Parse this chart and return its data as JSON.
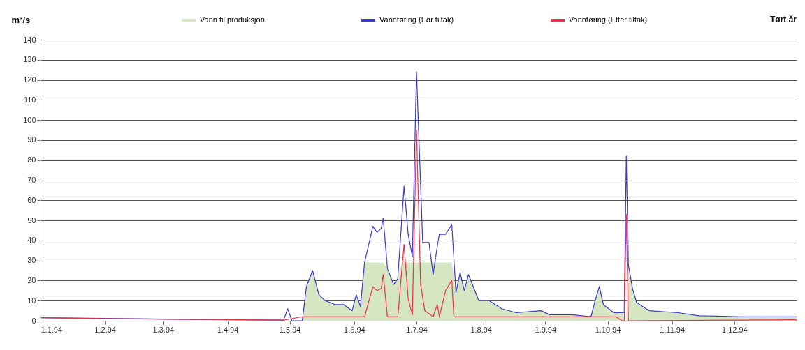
{
  "chart_data": {
    "type": "line",
    "title": "Tørt år",
    "ylabel": "m³/s",
    "xlim": [
      "1994-01-01",
      "1994-12-31"
    ],
    "xticks": [
      {
        "value": "1994-01-01",
        "label": "1.1.94"
      },
      {
        "value": "1994-02-01",
        "label": "1.2.94"
      },
      {
        "value": "1994-03-01",
        "label": "1.3.94"
      },
      {
        "value": "1994-04-01",
        "label": "1.4.94"
      },
      {
        "value": "1994-05-01",
        "label": "1.5.94"
      },
      {
        "value": "1994-06-01",
        "label": "1.6.94"
      },
      {
        "value": "1994-07-01",
        "label": "1.7.94"
      },
      {
        "value": "1994-08-01",
        "label": "1.8.94"
      },
      {
        "value": "1994-09-01",
        "label": "1.9.94"
      },
      {
        "value": "1994-10-01",
        "label": "1.10.94"
      },
      {
        "value": "1994-11-01",
        "label": "1.11.94"
      },
      {
        "value": "1994-12-01",
        "label": "1.12.94"
      }
    ],
    "ylim": [
      0,
      140
    ],
    "yticks": [
      0,
      10,
      20,
      30,
      40,
      50,
      60,
      70,
      80,
      90,
      100,
      110,
      120,
      130,
      140
    ],
    "grid": "y",
    "legend": "top",
    "series": [
      {
        "name": "Vann til produksjon",
        "type": "area",
        "color": "#d6e6c3",
        "x": [
          "1994-05-07",
          "1994-05-09",
          "1994-05-12",
          "1994-05-15",
          "1994-05-18",
          "1994-05-23",
          "1994-05-27",
          "1994-05-31",
          "1994-06-02",
          "1994-06-04",
          "1994-06-06",
          "1994-06-15",
          "1994-06-17",
          "1994-06-20",
          "1994-06-22",
          "1994-06-24",
          "1994-07-18",
          "1994-07-20",
          "1994-07-22",
          "1994-07-24",
          "1994-07-26",
          "1994-07-31",
          "1994-08-05",
          "1994-08-11",
          "1994-08-18",
          "1994-08-30",
          "1994-09-03",
          "1994-09-14",
          "1994-09-23",
          "1994-09-25",
          "1994-09-27",
          "1994-09-29",
          "1994-10-04",
          "1994-10-08",
          "1994-10-09",
          "1994-10-10",
          "1994-10-11",
          "1994-10-13",
          "1994-10-15",
          "1994-10-21",
          "1994-11-04",
          "1994-11-14",
          "1994-12-04",
          "1994-12-31"
        ],
        "values": [
          0,
          17,
          25,
          13,
          10,
          8,
          8,
          5,
          13,
          7,
          29,
          29,
          26,
          18,
          21,
          29,
          29,
          14,
          24,
          15,
          23,
          10,
          10,
          6,
          4,
          5,
          3,
          3,
          2,
          10,
          17,
          8,
          4,
          4,
          0,
          0,
          28,
          16,
          9,
          5,
          4,
          2.5,
          2,
          2
        ]
      },
      {
        "name": "Vannføring (Før tiltak)",
        "type": "line",
        "color": "#3a3ac8",
        "x": [
          "1994-01-01",
          "1994-02-01",
          "1994-03-01",
          "1994-04-01",
          "1994-04-28",
          "1994-04-30",
          "1994-05-02",
          "1994-05-07",
          "1994-05-09",
          "1994-05-12",
          "1994-05-15",
          "1994-05-18",
          "1994-05-23",
          "1994-05-27",
          "1994-05-31",
          "1994-06-02",
          "1994-06-04",
          "1994-06-06",
          "1994-06-10",
          "1994-06-12",
          "1994-06-14",
          "1994-06-15",
          "1994-06-17",
          "1994-06-20",
          "1994-06-22",
          "1994-06-25",
          "1994-06-27",
          "1994-06-29",
          "1994-07-01",
          "1994-07-04",
          "1994-07-07",
          "1994-07-09",
          "1994-07-11",
          "1994-07-12",
          "1994-07-15",
          "1994-07-18",
          "1994-07-20",
          "1994-07-22",
          "1994-07-24",
          "1994-07-26",
          "1994-07-31",
          "1994-08-05",
          "1994-08-11",
          "1994-08-18",
          "1994-08-30",
          "1994-09-03",
          "1994-09-14",
          "1994-09-23",
          "1994-09-25",
          "1994-09-27",
          "1994-09-29",
          "1994-10-04",
          "1994-10-08",
          "1994-10-09",
          "1994-10-10",
          "1994-10-11",
          "1994-10-13",
          "1994-10-15",
          "1994-10-21",
          "1994-11-04",
          "1994-11-14",
          "1994-12-04",
          "1994-12-31"
        ],
        "values": [
          1.5,
          1.2,
          0.8,
          0.5,
          0.3,
          6,
          0,
          0,
          17,
          25,
          13,
          10,
          8,
          8,
          5,
          13,
          7,
          29,
          47,
          44,
          46,
          51,
          26,
          18,
          21,
          67,
          43,
          32,
          124,
          39,
          39,
          23,
          37,
          43,
          43,
          48,
          14,
          24,
          15,
          23,
          10,
          10,
          6,
          4,
          5,
          3,
          3,
          2,
          10,
          17,
          8,
          4,
          4,
          4,
          82,
          28,
          16,
          9,
          5,
          4,
          2.5,
          2,
          2
        ]
      },
      {
        "name": "Vannføring (Etter tiltak)",
        "type": "line",
        "color": "#e8334a",
        "x": [
          "1994-01-01",
          "1994-02-01",
          "1994-04-28",
          "1994-05-07",
          "1994-06-06",
          "1994-06-10",
          "1994-06-12",
          "1994-06-14",
          "1994-06-15",
          "1994-06-17",
          "1994-06-22",
          "1994-06-25",
          "1994-06-27",
          "1994-06-29",
          "1994-07-01",
          "1994-07-03",
          "1994-07-05",
          "1994-07-09",
          "1994-07-11",
          "1994-07-12",
          "1994-07-15",
          "1994-07-18",
          "1994-07-19",
          "1994-09-23",
          "1994-10-05",
          "1994-10-08",
          "1994-10-09",
          "1994-10-10",
          "1994-10-11",
          "1994-12-31"
        ],
        "values": [
          1.5,
          1,
          0.3,
          2,
          2,
          17,
          15,
          16,
          23,
          2,
          2,
          38,
          11,
          3,
          95,
          18,
          5,
          2,
          8,
          2,
          15,
          20,
          2,
          2,
          2,
          0,
          0,
          53,
          0,
          0.5
        ]
      }
    ]
  }
}
